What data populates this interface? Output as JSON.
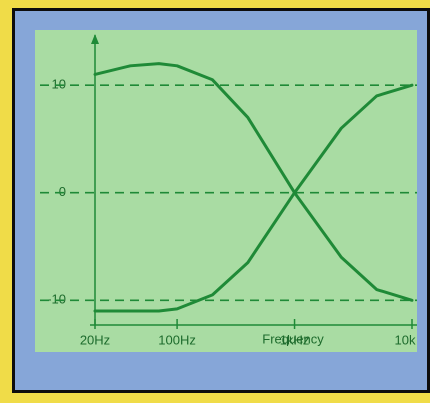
{
  "chart_data": {
    "type": "line",
    "x": [
      20,
      40,
      70,
      100,
      200,
      400,
      1000,
      2500,
      5000,
      10000
    ],
    "series": [
      {
        "color": "#1f8a37",
        "values": [
          11,
          11.8,
          12,
          11.8,
          10.5,
          7,
          0,
          -6,
          -9,
          -10
        ]
      },
      {
        "color": "#1f8a37",
        "values": [
          -11,
          -11,
          -11,
          -10.8,
          -9.5,
          -6.5,
          0,
          6,
          9,
          10
        ]
      }
    ],
    "log_x": true,
    "xlim": [
      20,
      10000
    ],
    "xticks": [
      {
        "value": 20,
        "label": "20Hz"
      },
      {
        "value": 100,
        "label": "100Hz"
      },
      {
        "value": 1000,
        "label": "1kHz"
      },
      {
        "value": 10000,
        "label": "10k"
      }
    ],
    "ylim": [
      -12.3,
      14.2
    ],
    "yticks": [
      {
        "value": -10,
        "label": "-10"
      },
      0,
      10
    ],
    "xlabel": "Frequency",
    "grid": true
  }
}
